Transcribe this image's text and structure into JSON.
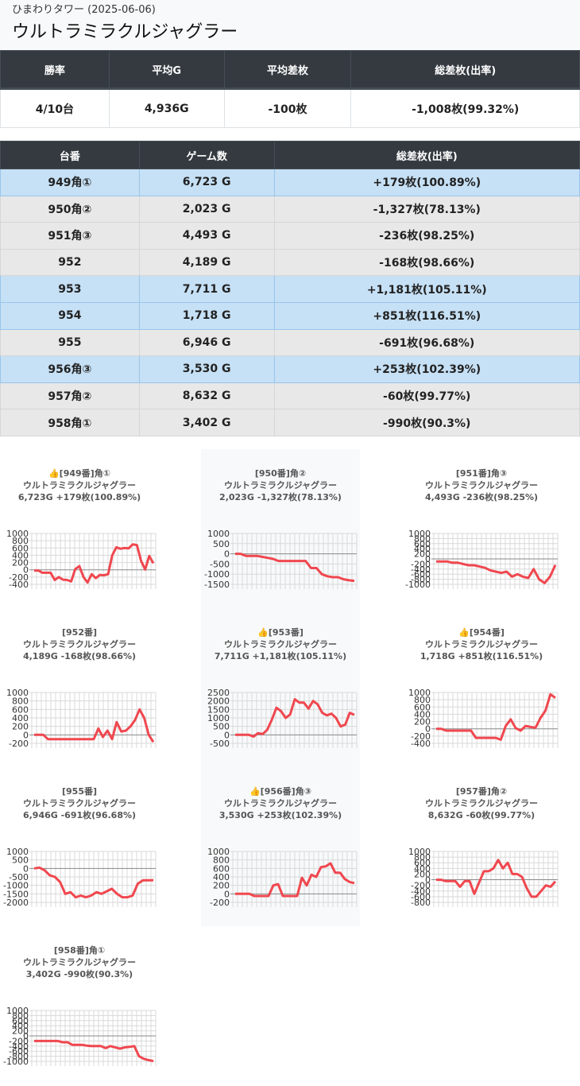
{
  "header": {
    "subtitle": "ひまわりタワー (2025-06-06)",
    "title": "ウルトラミラクルジャグラー"
  },
  "summary": {
    "headers": [
      "勝率",
      "平均G",
      "平均差枚",
      "総差枚(出率)"
    ],
    "values": [
      "4/10台",
      "4,936G",
      "-100枚",
      "-1,008枚(99.32%)"
    ]
  },
  "machines": {
    "headers": [
      "台番",
      "ゲーム数",
      "総差枚(出率)"
    ],
    "rows": [
      {
        "unit": "949角①",
        "games": "6,723 G",
        "diff": "+179枚(100.89%)",
        "win": true
      },
      {
        "unit": "950角②",
        "games": "2,023 G",
        "diff": "-1,327枚(78.13%)",
        "win": false
      },
      {
        "unit": "951角③",
        "games": "4,493 G",
        "diff": "-236枚(98.25%)",
        "win": false
      },
      {
        "unit": "952",
        "games": "4,189 G",
        "diff": "-168枚(98.66%)",
        "win": false
      },
      {
        "unit": "953",
        "games": "7,711 G",
        "diff": "+1,181枚(105.11%)",
        "win": true
      },
      {
        "unit": "954",
        "games": "1,718 G",
        "diff": "+851枚(116.51%)",
        "win": true
      },
      {
        "unit": "955",
        "games": "6,946 G",
        "diff": "-691枚(96.68%)",
        "win": false
      },
      {
        "unit": "956角③",
        "games": "3,530 G",
        "diff": "+253枚(102.39%)",
        "win": true
      },
      {
        "unit": "957角②",
        "games": "8,632 G",
        "diff": "-60枚(99.77%)",
        "win": false
      },
      {
        "unit": "958角①",
        "games": "3,402 G",
        "diff": "-990枚(90.3%)",
        "win": false
      }
    ]
  },
  "colors": {
    "line": "#f0474f",
    "win_row": "#c6e0f5",
    "lose_row": "#e8e8e8",
    "header_bg": "#343a40"
  },
  "chart_data": [
    {
      "type": "line",
      "title_lines": [
        "👍[949番]角①",
        "ウルトラミラクルジャグラー",
        "6,723G +179枚(100.89%)"
      ],
      "yticks": [
        1000,
        800,
        600,
        400,
        200,
        0,
        -200,
        -400
      ],
      "ylim": [
        -400,
        1000
      ],
      "values": [
        -20,
        -20,
        -80,
        -80,
        -80,
        -280,
        -200,
        -270,
        -280,
        -320,
        20,
        100,
        -200,
        -350,
        -120,
        -230,
        -140,
        -150,
        -120,
        400,
        620,
        580,
        600,
        590,
        700,
        680,
        250,
        10,
        380,
        179
      ]
    },
    {
      "type": "line",
      "title_lines": [
        "[950番]角②",
        "ウルトラミラクルジャグラー",
        "2,023G -1,327枚(78.13%)"
      ],
      "yticks": [
        1000,
        500,
        0,
        -500,
        -1000,
        -1500
      ],
      "ylim": [
        -1500,
        1000
      ],
      "values": [
        0,
        0,
        -100,
        -100,
        -100,
        -150,
        -200,
        -250,
        -350,
        -350,
        -350,
        -350,
        -350,
        -350,
        -700,
        -700,
        -1000,
        -1100,
        -1150,
        -1150,
        -1250,
        -1300,
        -1327
      ]
    },
    {
      "type": "line",
      "title_lines": [
        "[951番]角③",
        "ウルトラミラクルジャグラー",
        "4,493G -236枚(98.25%)"
      ],
      "yticks": [
        1000,
        800,
        600,
        400,
        200,
        0,
        -200,
        -400,
        -600,
        -800,
        -1000
      ],
      "ylim": [
        -1000,
        1000
      ],
      "values": [
        -100,
        -100,
        -100,
        -150,
        -150,
        -200,
        -250,
        -250,
        -300,
        -350,
        -450,
        -500,
        -550,
        -500,
        -700,
        -600,
        -700,
        -750,
        -400,
        -800,
        -950,
        -700,
        -236
      ]
    },
    {
      "type": "line",
      "title_lines": [
        "[952番]",
        "ウルトラミラクルジャグラー",
        "4,189G -168枚(98.66%)"
      ],
      "yticks": [
        1000,
        800,
        600,
        400,
        200,
        0,
        -200
      ],
      "ylim": [
        -200,
        1000
      ],
      "values": [
        0,
        0,
        0,
        -100,
        -100,
        -100,
        -100,
        -100,
        -100,
        -100,
        -100,
        -100,
        -100,
        -100,
        150,
        -50,
        100,
        -100,
        300,
        80,
        100,
        200,
        350,
        600,
        400,
        0,
        -168
      ]
    },
    {
      "type": "line",
      "title_lines": [
        "👍[953番]",
        "ウルトラミラクルジャグラー",
        "7,711G +1,181枚(105.11%)"
      ],
      "yticks": [
        2500,
        2000,
        1500,
        1000,
        500,
        0,
        -500
      ],
      "ylim": [
        -500,
        2500
      ],
      "values": [
        0,
        0,
        0,
        0,
        -100,
        100,
        50,
        300,
        900,
        1600,
        1400,
        1000,
        1200,
        2100,
        1900,
        1900,
        1550,
        2000,
        1800,
        1300,
        1150,
        1250,
        1000,
        500,
        600,
        1300,
        1181
      ]
    },
    {
      "type": "line",
      "title_lines": [
        "👍[954番]",
        "ウルトラミラクルジャグラー",
        "1,718G +851枚(116.51%)"
      ],
      "yticks": [
        1000,
        800,
        600,
        400,
        200,
        0,
        -200,
        -400
      ],
      "ylim": [
        -400,
        1000
      ],
      "values": [
        0,
        0,
        -50,
        -50,
        -50,
        -50,
        -50,
        -50,
        -250,
        -250,
        -250,
        -250,
        -250,
        -300,
        80,
        260,
        20,
        -50,
        80,
        50,
        30,
        300,
        500,
        950,
        851
      ]
    },
    {
      "type": "line",
      "title_lines": [
        "[955番]",
        "ウルトラミラクルジャグラー",
        "6,946G -691枚(96.68%)"
      ],
      "yticks": [
        1000,
        500,
        0,
        -500,
        -1000,
        -1500,
        -2000
      ],
      "ylim": [
        -2000,
        1000
      ],
      "values": [
        0,
        50,
        -100,
        -400,
        -500,
        -800,
        -1500,
        -1400,
        -1700,
        -1600,
        -1700,
        -1600,
        -1400,
        -1500,
        -1350,
        -1200,
        -1500,
        -1700,
        -1700,
        -1600,
        -900,
        -700,
        -700,
        -691
      ]
    },
    {
      "type": "line",
      "title_lines": [
        "👍[956番]角③",
        "ウルトラミラクルジャグラー",
        "3,530G +253枚(102.39%)"
      ],
      "yticks": [
        1000,
        800,
        600,
        400,
        200,
        0,
        -200
      ],
      "ylim": [
        -200,
        1000
      ],
      "values": [
        0,
        0,
        0,
        0,
        -50,
        -50,
        -50,
        -50,
        200,
        230,
        -50,
        -50,
        -50,
        -50,
        380,
        200,
        450,
        400,
        630,
        650,
        720,
        500,
        500,
        350,
        280,
        253
      ]
    },
    {
      "type": "line",
      "title_lines": [
        "[957番]角②",
        "ウルトラミラクルジャグラー",
        "8,632G -60枚(99.77%)"
      ],
      "yticks": [
        1000,
        800,
        600,
        400,
        200,
        0,
        -200,
        -400,
        -600,
        -800
      ],
      "ylim": [
        -800,
        1000
      ],
      "values": [
        0,
        0,
        -50,
        -50,
        -50,
        -250,
        -50,
        -50,
        -500,
        -100,
        300,
        300,
        400,
        700,
        400,
        600,
        200,
        200,
        100,
        -300,
        -600,
        -600,
        -400,
        -200,
        -250,
        -60
      ]
    },
    {
      "type": "line",
      "title_lines": [
        "[958番]角①",
        "ウルトラミラクルジャグラー",
        "3,402G -990枚(90.3%)"
      ],
      "yticks": [
        1000,
        800,
        600,
        400,
        200,
        0,
        -200,
        -400,
        -600,
        -800,
        -1000
      ],
      "ylim": [
        -1000,
        1000
      ],
      "values": [
        -200,
        -200,
        -200,
        -200,
        -200,
        -200,
        -250,
        -250,
        -350,
        -350,
        -350,
        -380,
        -400,
        -400,
        -400,
        -480,
        -400,
        -450,
        -500,
        -450,
        -430,
        -400,
        -800,
        -900,
        -950,
        -990
      ]
    }
  ]
}
